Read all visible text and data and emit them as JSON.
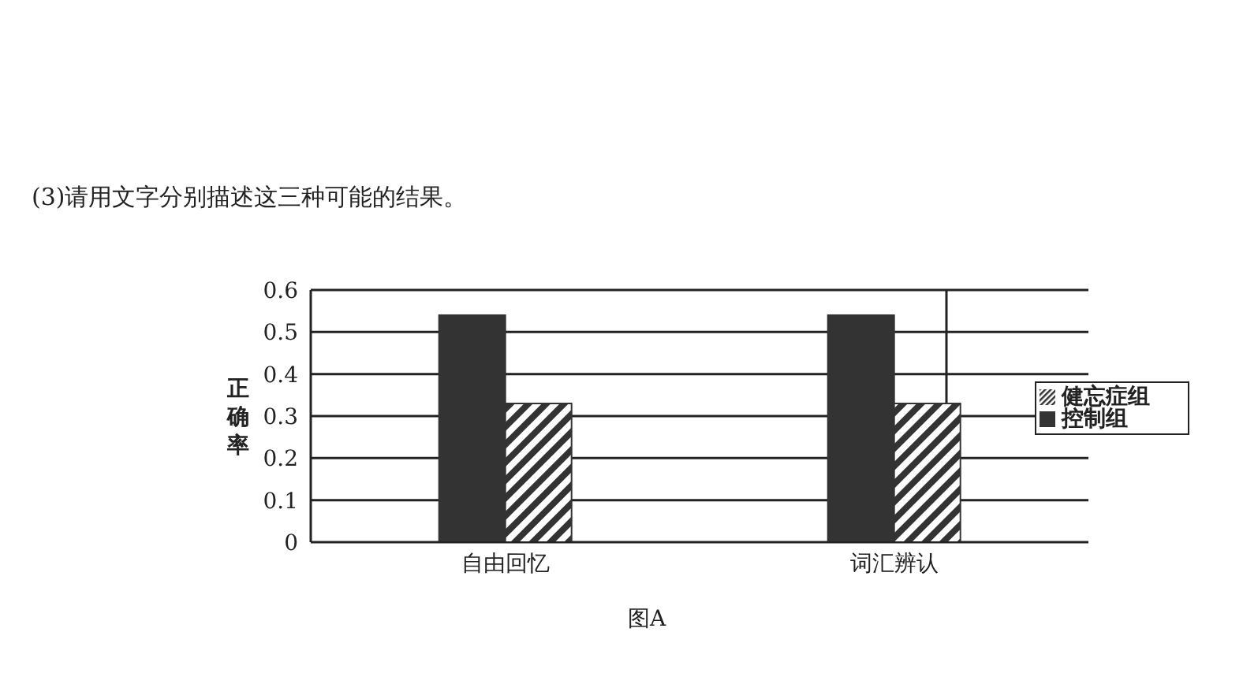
{
  "chart_data": {
    "type": "bar",
    "annotations": [
      "(3)请用文字分别描述这三种可能的结果。",
      "图A"
    ],
    "ylabel": "正确率",
    "categories": [
      "自由回忆",
      "词汇辨认"
    ],
    "series": [
      {
        "name": "控制组",
        "color": "#333333",
        "values": [
          0.54,
          0.54
        ]
      },
      {
        "name": "健忘症组",
        "color": "#333333",
        "values": [
          0.33,
          0.33
        ]
      }
    ],
    "ylim": [
      0,
      0.6
    ],
    "yticks": [
      0,
      0.1,
      0.2,
      0.3,
      0.4,
      0.5,
      0.6
    ],
    "grid": "y",
    "legend": "right"
  }
}
